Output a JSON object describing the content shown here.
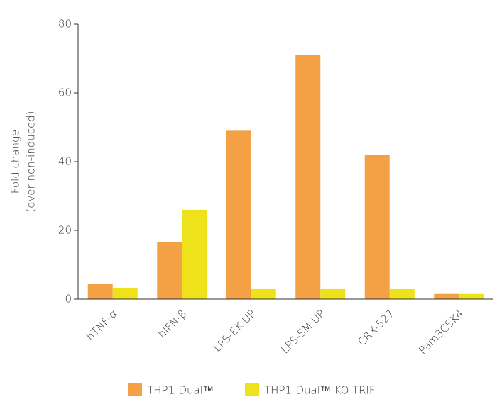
{
  "chart_data": {
    "type": "bar",
    "y_label": [
      "Fold change",
      "(over non-induced)"
    ],
    "categories": [
      "hTNF-α",
      "hIFN-β",
      "LPS-EK UP",
      "LPS-SM UP",
      "CRX-527",
      "Pam3CSK4"
    ],
    "series": [
      {
        "name": "THP1-Dual™",
        "color": "#f4a045",
        "values": [
          4.4,
          16.5,
          49,
          71,
          42,
          1.5
        ]
      },
      {
        "name": "THP1-Dual™ KO-TRIF",
        "color": "#eee21a",
        "values": [
          3.2,
          26,
          2.9,
          2.9,
          2.9,
          1.5
        ]
      }
    ],
    "ylim": [
      0,
      80
    ],
    "yticks": [
      0,
      20,
      40,
      60,
      80
    ],
    "grid": false,
    "legend": "bottom"
  }
}
